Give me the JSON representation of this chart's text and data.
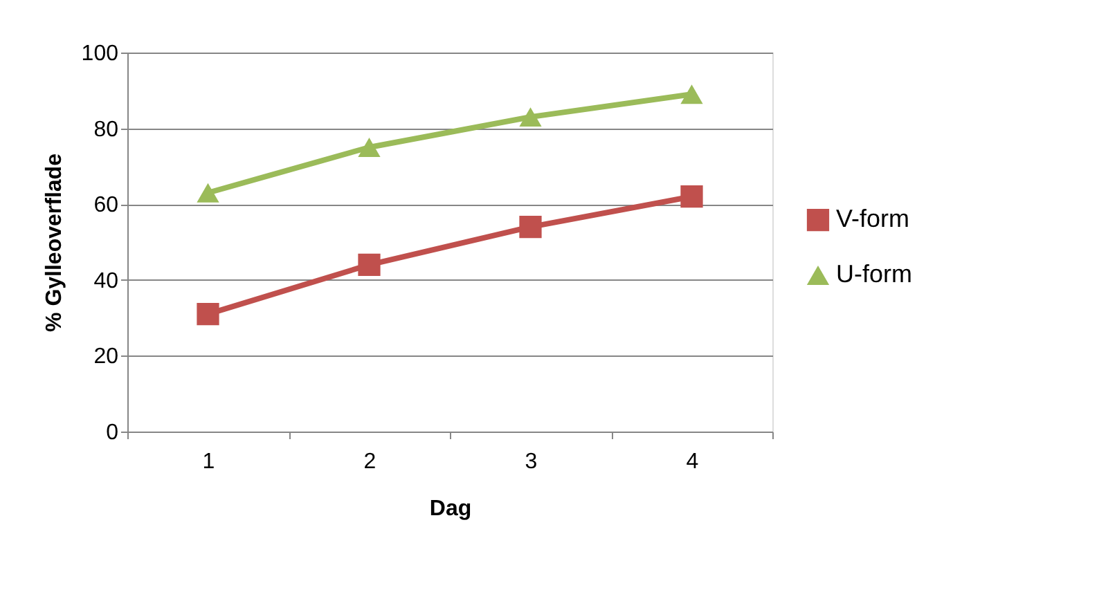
{
  "chart_data": {
    "type": "line",
    "xlabel": "Dag",
    "ylabel": "% Gylleoverflade",
    "categories": [
      "1",
      "2",
      "3",
      "4"
    ],
    "series": [
      {
        "name": "V-form",
        "color": "#c0504d",
        "marker": "square",
        "values": [
          31,
          44,
          54,
          62
        ]
      },
      {
        "name": "U-form",
        "color": "#9bbb59",
        "marker": "triangle",
        "values": [
          63,
          75,
          83,
          89
        ]
      }
    ],
    "ylim": [
      0,
      100
    ],
    "yticks": [
      0,
      20,
      40,
      60,
      80,
      100
    ],
    "grid": "y",
    "legend": "right",
    "line_style": "solid"
  }
}
